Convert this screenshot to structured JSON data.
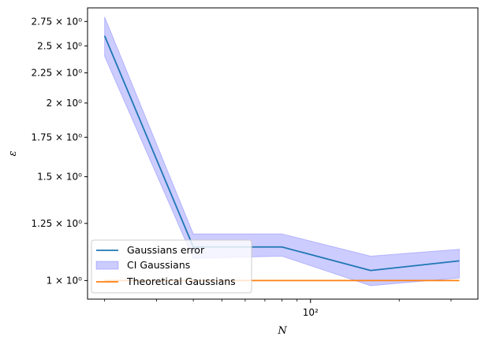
{
  "chart_data": {
    "type": "line",
    "xlabel": "N",
    "ylabel": "ε",
    "x_scale": "log",
    "y_scale": "log",
    "xlim": [
      17.5,
      370
    ],
    "ylim": [
      0.93,
      2.9
    ],
    "x_major_ticks": [
      100
    ],
    "x_tick_labels": [
      "10²"
    ],
    "x_minor_ticks": [
      20,
      30,
      40,
      50,
      60,
      70,
      80,
      90,
      200,
      300
    ],
    "y_ticks": [
      1.0,
      1.25,
      1.5,
      1.75,
      2.0,
      2.25,
      2.5,
      2.75
    ],
    "y_tick_labels": [
      "1 × 10⁰",
      "1.25 × 10⁰",
      "1.5 × 10⁰",
      "1.75 × 10⁰",
      "2 × 10⁰",
      "2.25 × 10⁰",
      "2.5 × 10⁰",
      "2.75 × 10⁰"
    ],
    "x": [
      20,
      40,
      80,
      160,
      320
    ],
    "series": [
      {
        "name": "Gaussians error",
        "kind": "line",
        "color": "#1f77b4",
        "values": [
          2.6,
          1.14,
          1.14,
          1.04,
          1.08
        ]
      },
      {
        "name": "CI Gaussians",
        "kind": "band",
        "color": "#0000ff",
        "lower": [
          2.4,
          1.09,
          1.1,
          0.98,
          1.01
        ],
        "upper": [
          2.8,
          1.2,
          1.2,
          1.1,
          1.13
        ]
      },
      {
        "name": "Theoretical Gaussians",
        "kind": "line",
        "color": "#ff7f0e",
        "values": [
          1.0,
          1.0,
          1.0,
          1.0,
          1.0
        ]
      }
    ],
    "legend_position": "lower-left",
    "grid": false
  }
}
